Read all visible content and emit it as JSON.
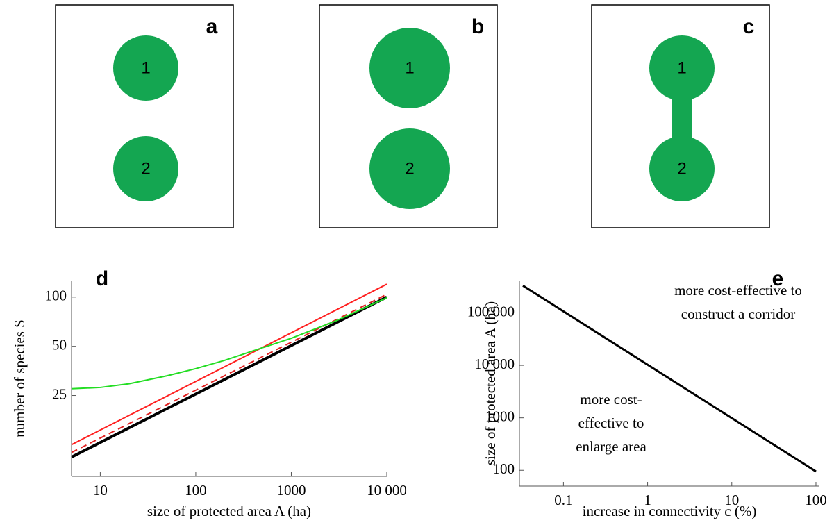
{
  "panels": [
    {
      "label": "a",
      "nodes": [
        "1",
        "2"
      ]
    },
    {
      "label": "b",
      "nodes": [
        "1",
        "2"
      ]
    },
    {
      "label": "c",
      "nodes": [
        "1",
        "2"
      ]
    }
  ],
  "chart_data": [
    {
      "type": "line",
      "panel": "d",
      "x_label": "size of protected area A (ha)",
      "y_label": "number of species S",
      "log_x": true,
      "log_y": true,
      "grid": false,
      "xlim": [
        5,
        10000
      ],
      "ylim": [
        8,
        125
      ],
      "xticks": [
        10,
        100,
        1000,
        {
          "value": 10000,
          "label": "10 000"
        }
      ],
      "yticks": [
        25,
        50,
        100
      ],
      "series": [
        {
          "color": "#ff2020",
          "dash": false,
          "width": 2,
          "x": [
            5,
            10000
          ],
          "values": [
            12.5,
            120
          ]
        },
        {
          "color": "#e02020",
          "dash": true,
          "width": 2,
          "x": [
            5,
            10000
          ],
          "values": [
            11.2,
            104
          ]
        },
        {
          "color": "#000000",
          "dash": false,
          "width": 4,
          "x": [
            5,
            10000
          ],
          "values": [
            10.5,
            100
          ]
        },
        {
          "color": "#22dd22",
          "dash": false,
          "width": 2,
          "x": [
            5,
            10,
            20,
            50,
            100,
            200,
            500,
            1000,
            3000,
            10000
          ],
          "values": [
            27.5,
            28,
            29.5,
            33,
            36.5,
            41,
            49,
            56,
            72,
            99
          ]
        }
      ]
    },
    {
      "type": "line",
      "panel": "e",
      "x_label": "increase in connectivity c (%)",
      "y_label": "size of protected area A (ha)",
      "log_x": true,
      "log_y": true,
      "grid": false,
      "xlim": [
        0.03,
        110
      ],
      "ylim": [
        50,
        400000
      ],
      "xticks": [
        0.1,
        1,
        10,
        100
      ],
      "yticks": [
        100,
        1000,
        {
          "value": 10000,
          "label": "10 000"
        },
        {
          "value": 100000,
          "label": "100 000"
        }
      ],
      "series": [
        {
          "color": "#000000",
          "dash": false,
          "width": 3,
          "x": [
            0.033,
            100
          ],
          "values": [
            330000,
            95
          ]
        }
      ],
      "annotations": [
        {
          "lines": [
            "more cost-effective to",
            "construct a corridor"
          ]
        },
        {
          "lines": [
            "more cost-",
            "effective to",
            "enlarge area"
          ]
        }
      ]
    }
  ]
}
